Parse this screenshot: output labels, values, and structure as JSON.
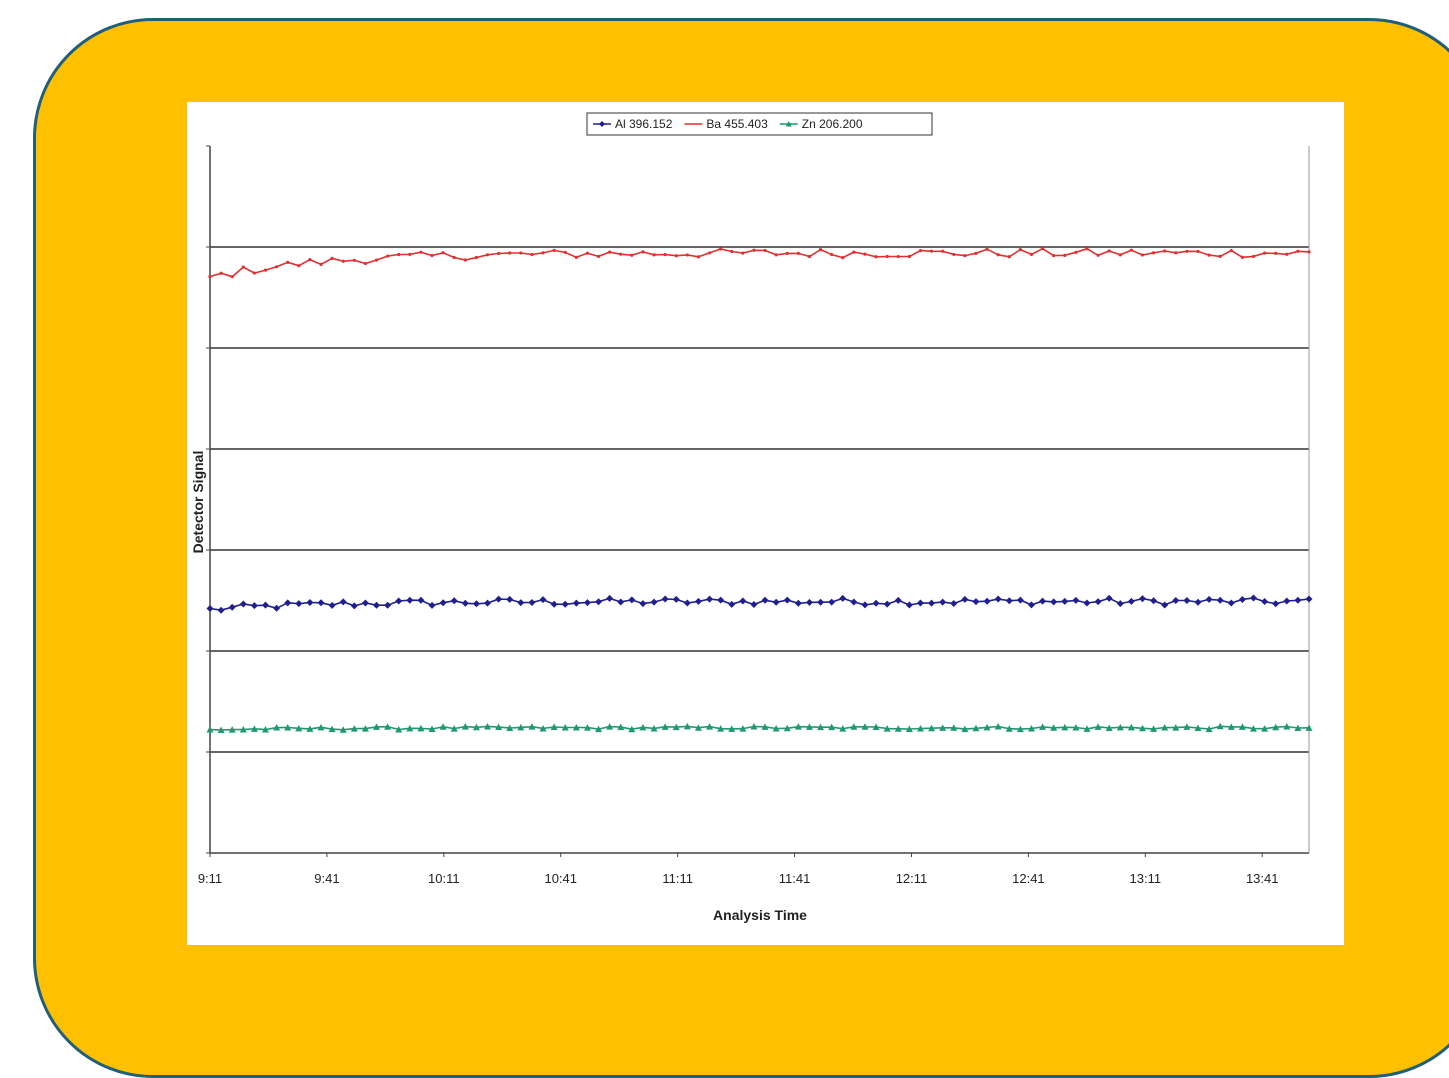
{
  "chart_data": {
    "type": "line",
    "title": "",
    "xlabel": "Analysis Time",
    "ylabel": "Detector Signal",
    "x_tick_labels": [
      "9:11",
      "9:41",
      "10:11",
      "10:41",
      "11:11",
      "11:41",
      "12:11",
      "12:41",
      "13:11",
      "13:41"
    ],
    "x_range_minutes": [
      0,
      282
    ],
    "y_range": [
      0,
      7
    ],
    "y_gridlines": [
      1,
      2,
      3,
      4,
      5,
      6
    ],
    "y_tick_labels_shown": false,
    "grid": true,
    "legend_position": "top",
    "points_per_series": 100,
    "series": [
      {
        "name": "Al 396.152",
        "color": "#1f1f8f",
        "marker": "diamond",
        "base": 2.49,
        "noise": 0.035,
        "ramp": 0.08
      },
      {
        "name": "Ba 455.403",
        "color": "#e03030",
        "marker": "none",
        "base": 5.94,
        "noise": 0.045,
        "ramp": 0.24
      },
      {
        "name": "Zn 206.200",
        "color": "#1f9a6e",
        "marker": "triangle",
        "base": 1.24,
        "noise": 0.015,
        "ramp": 0.02
      }
    ]
  }
}
